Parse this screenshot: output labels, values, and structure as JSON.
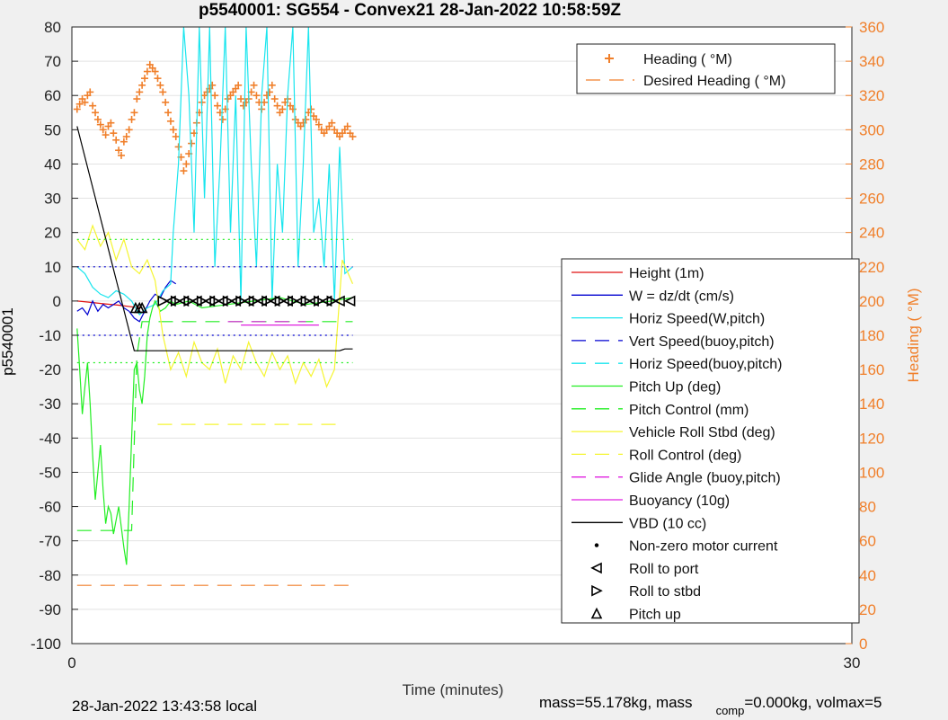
{
  "chart_data": {
    "type": "line",
    "title": "p5540001: SG554 - Convex21 28-Jan-2022 10:58:59Z",
    "xlabel": "Time (minutes)",
    "ylabel_left": "p5540001",
    "ylabel_right": "Heading ( °M)",
    "xlim": [
      0,
      30
    ],
    "ylim_left": [
      -100,
      80
    ],
    "ylim_right": [
      0,
      360
    ],
    "x_ticks": [
      "0",
      "30"
    ],
    "y_ticks_left": [
      "80",
      "70",
      "60",
      "50",
      "40",
      "30",
      "20",
      "10",
      "0",
      "-10",
      "-20",
      "-30",
      "-40",
      "-50",
      "-60",
      "-70",
      "-80",
      "-90",
      "-100"
    ],
    "y_ticks_right": [
      "360",
      "340",
      "320",
      "300",
      "280",
      "260",
      "240",
      "220",
      "200",
      "180",
      "160",
      "140",
      "120",
      "100",
      "80",
      "60",
      "40",
      "20",
      "0"
    ],
    "grid": true,
    "legend_top": [
      {
        "label": "Heading ( °M)",
        "style": "plus",
        "color": "#f07f2a"
      },
      {
        "label": "Desired Heading ( °M)",
        "style": "dash",
        "color": "#f07f2a"
      }
    ],
    "legend_main": [
      {
        "label": "Height (1m)",
        "style": "solid",
        "color": "#e01010"
      },
      {
        "label": "W = dz/dt (cm/s)",
        "style": "solid",
        "color": "#0000d0"
      },
      {
        "label": "Horiz Speed(W,pitch)",
        "style": "solid",
        "color": "#19e5ee"
      },
      {
        "label": "Vert Speed(buoy,pitch)",
        "style": "dash",
        "color": "#0000d0"
      },
      {
        "label": "Horiz Speed(buoy,pitch)",
        "style": "dash",
        "color": "#19e5ee"
      },
      {
        "label": "Pitch Up (deg)",
        "style": "solid",
        "color": "#22ee22"
      },
      {
        "label": "Pitch Control (mm)",
        "style": "dash",
        "color": "#22ee22"
      },
      {
        "label": "Vehicle Roll Stbd (deg)",
        "style": "solid",
        "color": "#f5f530"
      },
      {
        "label": "Roll Control (deg)",
        "style": "dash",
        "color": "#f5f530"
      },
      {
        "label": "Glide Angle (buoy,pitch)",
        "style": "dash",
        "color": "#e020e0"
      },
      {
        "label": "Buoyancy (10g)",
        "style": "solid",
        "color": "#e020e0"
      },
      {
        "label": "VBD (10 cc)",
        "style": "solid",
        "color": "#000000"
      },
      {
        "label": "Non-zero motor current",
        "style": "dot",
        "color": "#000000"
      },
      {
        "label": "Roll to port",
        "style": "tri-left",
        "color": "#000000"
      },
      {
        "label": "Roll to stbd",
        "style": "tri-right",
        "color": "#000000"
      },
      {
        "label": "Pitch up",
        "style": "tri-up",
        "color": "#000000"
      }
    ],
    "series": [
      {
        "name": "Heading ( °M)",
        "axis": "right",
        "marker": "plus",
        "color": "#f07f2a",
        "x": [
          0.2,
          0.3,
          0.4,
          0.5,
          0.6,
          0.7,
          0.8,
          0.9,
          1.0,
          1.1,
          1.2,
          1.3,
          1.4,
          1.5,
          1.6,
          1.7,
          1.8,
          1.9,
          2.0,
          2.1,
          2.2,
          2.3,
          2.4,
          2.5,
          2.6,
          2.7,
          2.8,
          2.9,
          3.0,
          3.1,
          3.2,
          3.3,
          3.4,
          3.5,
          3.6,
          3.7,
          3.8,
          3.9,
          4.0,
          4.1,
          4.2,
          4.3,
          4.4,
          4.5,
          4.6,
          4.7,
          4.8,
          4.9,
          5.0,
          5.1,
          5.2,
          5.3,
          5.4,
          5.5,
          5.6,
          5.7,
          5.8,
          5.9,
          6.0,
          6.1,
          6.2,
          6.3,
          6.4,
          6.5,
          6.6,
          6.7,
          6.8,
          6.9,
          7.0,
          7.1,
          7.2,
          7.3,
          7.4,
          7.5,
          7.6,
          7.7,
          7.8,
          7.9,
          8.0,
          8.1,
          8.2,
          8.3,
          8.4,
          8.5,
          8.6,
          8.7,
          8.8,
          8.9,
          9.0,
          9.1,
          9.2,
          9.3,
          9.4,
          9.5,
          9.6,
          9.7,
          9.8,
          9.9,
          10.0,
          10.1,
          10.2,
          10.3,
          10.4,
          10.5,
          10.6,
          10.7,
          10.8
        ],
        "y": [
          312,
          315,
          318,
          316,
          320,
          322,
          314,
          310,
          306,
          303,
          300,
          297,
          302,
          304,
          298,
          294,
          288,
          285,
          293,
          296,
          300,
          306,
          310,
          318,
          322,
          326,
          330,
          334,
          338,
          336,
          334,
          330,
          326,
          322,
          316,
          310,
          305,
          300,
          296,
          290,
          284,
          276,
          280,
          286,
          292,
          298,
          304,
          310,
          316,
          320,
          322,
          324,
          326,
          320,
          314,
          310,
          306,
          312,
          318,
          320,
          322,
          324,
          326,
          318,
          314,
          316,
          318,
          322,
          326,
          320,
          316,
          312,
          316,
          320,
          322,
          326,
          318,
          314,
          310,
          312,
          316,
          318,
          314,
          312,
          306,
          304,
          302,
          304,
          306,
          310,
          312,
          308,
          306,
          303,
          300,
          298,
          300,
          302,
          304,
          300,
          298,
          296,
          298,
          300,
          302,
          298,
          296
        ]
      },
      {
        "name": "Desired Heading ( °M)",
        "axis": "right",
        "style": "dash",
        "color": "#f07f2a",
        "x": [
          0.2,
          10.8
        ],
        "y": [
          34,
          34
        ]
      },
      {
        "name": "Height (1m)",
        "axis": "left",
        "style": "solid",
        "color": "#e01010",
        "x": [
          0.2,
          0.6,
          1.2,
          1.8,
          2.4,
          2.7
        ],
        "y": [
          0,
          -0.3,
          -0.8,
          -1.2,
          -1.8,
          -2.0
        ]
      },
      {
        "name": "W = dz/dt (cm/s)",
        "axis": "left",
        "style": "solid",
        "color": "#0000d0",
        "x": [
          0.2,
          0.4,
          0.6,
          0.8,
          1.0,
          1.2,
          1.4,
          1.6,
          1.8,
          2.0,
          2.2,
          2.4,
          2.6,
          2.8,
          3.0,
          3.2,
          3.4,
          3.6,
          3.8,
          4.0
        ],
        "y": [
          -3,
          -2,
          -4,
          0,
          -3,
          -1,
          -2,
          -1,
          0,
          -2,
          -3,
          -5,
          -6,
          -3,
          0,
          2,
          1,
          4,
          6,
          5
        ]
      },
      {
        "name": "Horiz Speed(W,pitch)",
        "axis": "left",
        "style": "solid",
        "color": "#19e5ee",
        "x": [
          0.2,
          0.5,
          0.8,
          1.1,
          1.4,
          1.7,
          2.0,
          2.3,
          2.6,
          2.9,
          3.2,
          3.5,
          3.8,
          3.9,
          4.1,
          4.3,
          4.5,
          4.7,
          4.9,
          5.1,
          5.3,
          5.5,
          5.7,
          5.9,
          6.1,
          6.3,
          6.5,
          6.7,
          6.9,
          7.1,
          7.3,
          7.5,
          7.7,
          7.9,
          8.1,
          8.3,
          8.5,
          8.7,
          8.9,
          9.1,
          9.3,
          9.5,
          9.7,
          9.9,
          10.1,
          10.3,
          10.5,
          10.8
        ],
        "y": [
          10,
          8,
          4,
          2,
          1,
          3,
          2,
          0,
          -4,
          -2,
          -1,
          3,
          5,
          20,
          40,
          80,
          60,
          20,
          80,
          30,
          80,
          10,
          40,
          80,
          20,
          60,
          0,
          80,
          40,
          10,
          60,
          80,
          0,
          40,
          20,
          60,
          80,
          10,
          40,
          80,
          20,
          30,
          10,
          40,
          0,
          45,
          8,
          10
        ]
      },
      {
        "name": "Vert Speed(buoy,pitch)",
        "axis": "left",
        "style": "dot",
        "color": "#0000d0",
        "x": [
          0.2,
          10.8
        ],
        "y": [
          10,
          10
        ]
      },
      {
        "name": "Vert Speed(buoy,pitch) lower",
        "axis": "left",
        "style": "dot",
        "color": "#0000d0",
        "x": [
          0.2,
          10.8
        ],
        "y": [
          -10,
          -10
        ]
      },
      {
        "name": "Pitch Up (deg)",
        "axis": "left",
        "style": "solid",
        "color": "#22ee22",
        "x": [
          0.2,
          0.3,
          0.4,
          0.5,
          0.6,
          0.7,
          0.8,
          0.9,
          1.0,
          1.1,
          1.2,
          1.3,
          1.4,
          1.5,
          1.6,
          1.7,
          1.8,
          1.9,
          2.0,
          2.1,
          2.2,
          2.3,
          2.4,
          2.5,
          2.6,
          2.7,
          2.8,
          2.9,
          3.0,
          3.1,
          3.2,
          3.4,
          3.6,
          3.8,
          4.0,
          4.5,
          5.0,
          6.0,
          7.0,
          8.0,
          9.0,
          10.0,
          10.8
        ],
        "y": [
          -8,
          -20,
          -33,
          -25,
          -18,
          -30,
          -45,
          -58,
          -50,
          -42,
          -55,
          -65,
          -60,
          -62,
          -68,
          -64,
          -60,
          -66,
          -72,
          -77,
          -60,
          -40,
          -20,
          -18,
          -26,
          -30,
          -22,
          -10,
          -5,
          -2,
          0,
          -3,
          -2,
          0,
          -1,
          0,
          -2,
          -1,
          0,
          1,
          -1,
          0,
          1
        ]
      },
      {
        "name": "Pitch Control (mm)",
        "axis": "left",
        "style": "dash",
        "color": "#22ee22",
        "x": [
          0.2,
          1.4,
          2.3,
          2.5,
          2.7,
          10.8
        ],
        "y": [
          -67,
          -67,
          -67,
          -16,
          -6,
          -6
        ]
      },
      {
        "name": "Vehicle Roll Stbd (deg)",
        "axis": "left",
        "style": "solid",
        "color": "#f5f530",
        "x": [
          0.2,
          0.5,
          0.8,
          1.1,
          1.4,
          1.7,
          2.0,
          2.3,
          2.6,
          2.9,
          3.2,
          3.5,
          3.8,
          4.1,
          4.4,
          4.7,
          5.0,
          5.3,
          5.6,
          5.9,
          6.2,
          6.5,
          6.8,
          7.1,
          7.4,
          7.7,
          8.0,
          8.3,
          8.6,
          8.9,
          9.2,
          9.5,
          9.8,
          10.1,
          10.4,
          10.8
        ],
        "y": [
          18,
          15,
          22,
          16,
          20,
          12,
          18,
          10,
          8,
          12,
          6,
          -10,
          -20,
          -15,
          -22,
          -12,
          -18,
          -20,
          -14,
          -24,
          -16,
          -20,
          -12,
          -18,
          -22,
          -15,
          -20,
          -16,
          -24,
          -18,
          -22,
          -17,
          -25,
          -20,
          12,
          5
        ]
      },
      {
        "name": "Roll Control (deg)",
        "axis": "left",
        "style": "dash",
        "color": "#f5f530",
        "x": [
          3.3,
          10.3
        ],
        "y": [
          -36,
          -36
        ]
      },
      {
        "name": "Glide Angle (buoy,pitch)",
        "axis": "left",
        "style": "dash",
        "color": "#e020e0",
        "x": [
          6.0,
          9.0
        ],
        "y": [
          -6,
          -6
        ]
      },
      {
        "name": "Buoyancy (10g)",
        "axis": "left",
        "style": "solid",
        "color": "#e020e0",
        "x": [
          6.5,
          9.5
        ],
        "y": [
          -7,
          -7
        ]
      },
      {
        "name": "VBD (10 cc)",
        "axis": "left",
        "style": "solid",
        "color": "#000000",
        "x": [
          0.2,
          2.4,
          10.3,
          10.5,
          10.8
        ],
        "y": [
          51,
          -14.5,
          -14.5,
          -14,
          -14
        ]
      },
      {
        "name": "Pitch Up threshold upper",
        "axis": "left",
        "style": "dot",
        "color": "#22ee22",
        "x": [
          0.2,
          10.8
        ],
        "y": [
          18,
          18
        ]
      },
      {
        "name": "Pitch Up threshold lower",
        "axis": "left",
        "style": "dot",
        "color": "#22ee22",
        "x": [
          0.2,
          10.8
        ],
        "y": [
          -18,
          -18
        ]
      }
    ],
    "markers": {
      "pitch_up": {
        "x": [
          2.45,
          2.6,
          2.7
        ],
        "y": [
          -2,
          -2,
          -2
        ]
      },
      "roll_to_stbd": {
        "x": [
          3.5,
          4.0,
          4.5,
          5.0,
          5.5,
          6.0,
          6.5,
          7.0,
          7.5,
          8.0,
          8.5,
          9.0,
          9.5,
          10.0
        ],
        "y": [
          0,
          0,
          0,
          0,
          0,
          0,
          0,
          0,
          0,
          0,
          0,
          0,
          0,
          0
        ]
      },
      "roll_to_port": {
        "x": [
          3.8,
          4.3,
          4.8,
          5.3,
          5.8,
          6.3,
          6.8,
          7.3,
          7.8,
          8.3,
          8.8,
          9.3,
          9.8,
          10.3,
          10.7
        ],
        "y": [
          0,
          0,
          0,
          0,
          0,
          0,
          0,
          0,
          0,
          0,
          0,
          0,
          0,
          0,
          0
        ]
      }
    }
  },
  "footer": {
    "local_time": "28-Jan-2022 13:43:58 local",
    "mass_text": "mass=55.178kg, mass",
    "mass_sub": "comp",
    "mass_rest": "=0.000kg, volmax=5"
  }
}
